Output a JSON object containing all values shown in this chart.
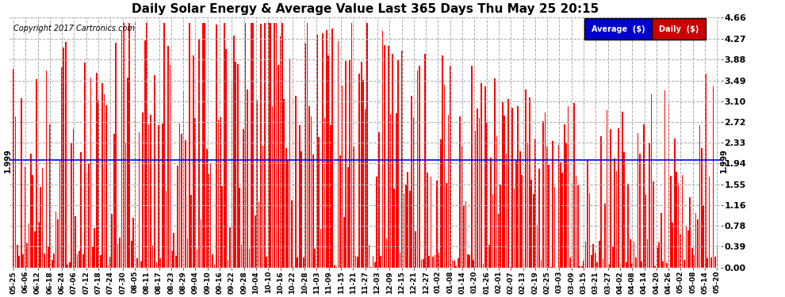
{
  "title": "Daily Solar Energy & Average Value Last 365 Days Thu May 25 20:15",
  "copyright": "Copyright 2017 Cartronics.com",
  "average_value": 1.999,
  "ymax": 4.66,
  "ymin": 0.0,
  "yticks": [
    0.0,
    0.39,
    0.78,
    1.16,
    1.55,
    1.94,
    2.33,
    2.72,
    3.1,
    3.49,
    3.88,
    4.27,
    4.66
  ],
  "bar_color": "#FF0000",
  "avg_line_color": "#0000FF",
  "avg_label_color": "#000000",
  "background_color": "#FFFFFF",
  "grid_color": "#AAAAAA",
  "grid_style": "--",
  "legend_avg_bg": "#0000CC",
  "legend_daily_bg": "#CC0000",
  "legend_text_color": "#FFFFFF",
  "n_bars": 365,
  "seed": 42,
  "x_labels": [
    "05-25",
    "06-06",
    "06-12",
    "06-18",
    "06-24",
    "07-06",
    "07-12",
    "07-18",
    "07-24",
    "07-30",
    "08-05",
    "08-11",
    "08-17",
    "08-23",
    "08-29",
    "09-04",
    "09-10",
    "09-16",
    "09-22",
    "09-28",
    "10-04",
    "10-10",
    "10-16",
    "10-22",
    "10-28",
    "11-03",
    "11-09",
    "11-15",
    "11-21",
    "11-27",
    "12-03",
    "12-09",
    "12-15",
    "12-21",
    "12-27",
    "01-02",
    "01-08",
    "01-14",
    "01-20",
    "01-26",
    "02-01",
    "02-07",
    "02-13",
    "02-19",
    "02-25",
    "03-03",
    "03-09",
    "03-15",
    "03-21",
    "03-27",
    "04-02",
    "04-08",
    "04-14",
    "04-20",
    "04-26",
    "05-02",
    "05-08",
    "05-14",
    "05-20"
  ]
}
